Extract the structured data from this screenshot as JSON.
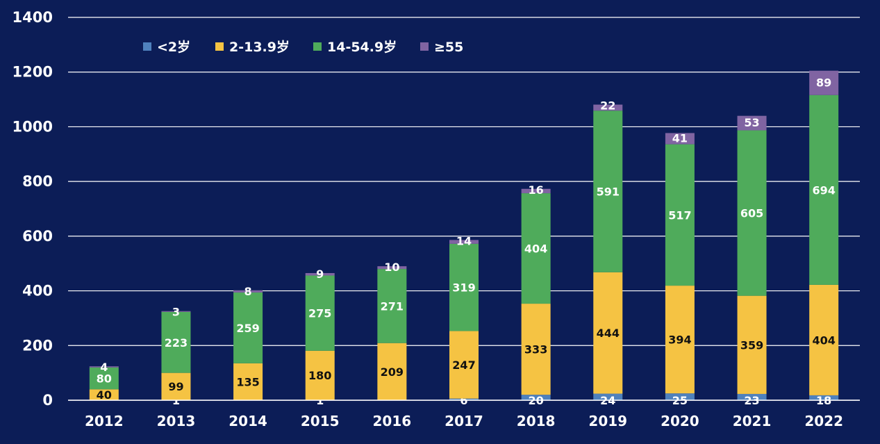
{
  "chart_data": {
    "type": "bar",
    "stacked": true,
    "categories": [
      "2012",
      "2013",
      "2014",
      "2015",
      "2016",
      "2017",
      "2018",
      "2019",
      "2020",
      "2021",
      "2022"
    ],
    "series": [
      {
        "name": "<2岁",
        "color": "#4f81bd",
        "values": [
          0,
          1,
          0,
          1,
          0,
          6,
          20,
          24,
          25,
          23,
          18
        ],
        "labels": [
          "",
          "1",
          "",
          "1",
          "",
          "6",
          "20",
          "24",
          "25",
          "23",
          "18"
        ]
      },
      {
        "name": "2-13.9岁",
        "color": "#f5c343",
        "values": [
          40,
          99,
          135,
          180,
          209,
          247,
          333,
          444,
          394,
          359,
          404
        ],
        "labels": [
          "40",
          "99",
          "135",
          "180",
          "209",
          "247",
          "333",
          "444",
          "394",
          "359",
          "404"
        ]
      },
      {
        "name": "14-54.9岁",
        "color": "#4fab5b",
        "values": [
          80,
          223,
          259,
          275,
          271,
          319,
          404,
          591,
          517,
          605,
          694
        ],
        "labels": [
          "80",
          "223",
          "259",
          "275",
          "271",
          "319",
          "404",
          "591",
          "517",
          "605",
          "694"
        ]
      },
      {
        "name": "≥55",
        "color": "#8064a2",
        "values": [
          4,
          3,
          8,
          9,
          10,
          14,
          16,
          22,
          41,
          53,
          89
        ],
        "labels": [
          "4",
          "3",
          "8",
          "9",
          "10",
          "14",
          "16",
          "22",
          "41",
          "53",
          "89"
        ]
      }
    ],
    "ylim": [
      0,
      1400
    ],
    "yticks": [
      0,
      200,
      400,
      600,
      800,
      1000,
      1200,
      1400
    ],
    "ytick_labels": [
      "0",
      "200",
      "400",
      "600",
      "800",
      "1000",
      "1200",
      "1400"
    ],
    "grid": true,
    "legend_position": "top-left"
  }
}
